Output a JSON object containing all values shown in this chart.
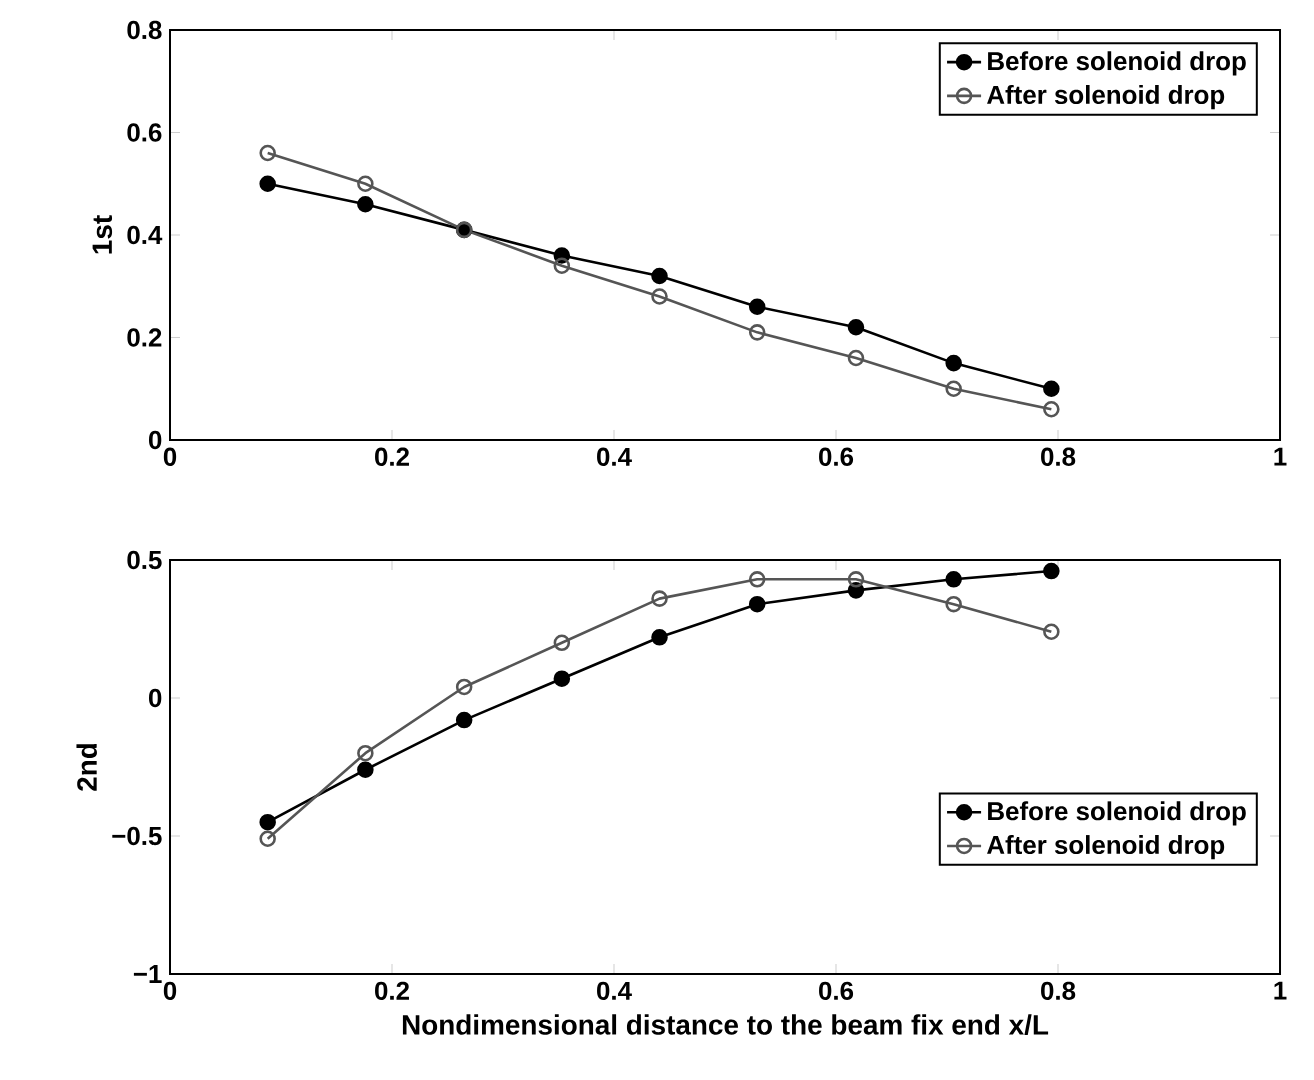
{
  "chart_data": [
    {
      "type": "line",
      "ylabel": "1st",
      "x": [
        0.088,
        0.176,
        0.265,
        0.353,
        0.441,
        0.529,
        0.618,
        0.706,
        0.794
      ],
      "series": [
        {
          "name": "Before solenoid drop",
          "color": "#000000",
          "values": [
            0.5,
            0.46,
            0.41,
            0.36,
            0.32,
            0.26,
            0.22,
            0.15,
            0.1
          ]
        },
        {
          "name": "After solenoid drop",
          "color": "#555555",
          "values": [
            0.56,
            0.5,
            0.41,
            0.34,
            0.28,
            0.21,
            0.16,
            0.1,
            0.06
          ]
        }
      ],
      "xlim": [
        0,
        1
      ],
      "xticks": [
        0,
        0.2,
        0.4,
        0.6,
        0.8,
        1
      ],
      "ylim": [
        0,
        0.8
      ],
      "yticks": [
        0,
        0.2,
        0.4,
        0.6,
        0.8
      ],
      "grid": false,
      "legend": "top right",
      "marker": "circle",
      "line_style": "solid"
    },
    {
      "type": "line",
      "ylabel": "2nd",
      "xlabel": "Nondimensional distance to the beam fix end x/L",
      "x": [
        0.088,
        0.176,
        0.265,
        0.353,
        0.441,
        0.529,
        0.618,
        0.706,
        0.794
      ],
      "series": [
        {
          "name": "Before solenoid drop",
          "color": "#000000",
          "values": [
            -0.45,
            -0.26,
            -0.08,
            0.07,
            0.22,
            0.34,
            0.39,
            0.43,
            0.46
          ]
        },
        {
          "name": "After solenoid drop",
          "color": "#555555",
          "values": [
            -0.51,
            -0.2,
            0.04,
            0.2,
            0.36,
            0.43,
            0.43,
            0.34,
            0.24
          ]
        }
      ],
      "xlim": [
        0,
        1
      ],
      "xticks": [
        0,
        0.2,
        0.4,
        0.6,
        0.8,
        1
      ],
      "ylim": [
        -1,
        0.5
      ],
      "yticks": [
        {
          "value": -1,
          "label": "−1"
        },
        {
          "value": -0.5,
          "label": "−0.5"
        },
        0,
        0.5
      ],
      "grid": false,
      "legend": "right",
      "marker": "circle",
      "line_style": "solid"
    }
  ]
}
